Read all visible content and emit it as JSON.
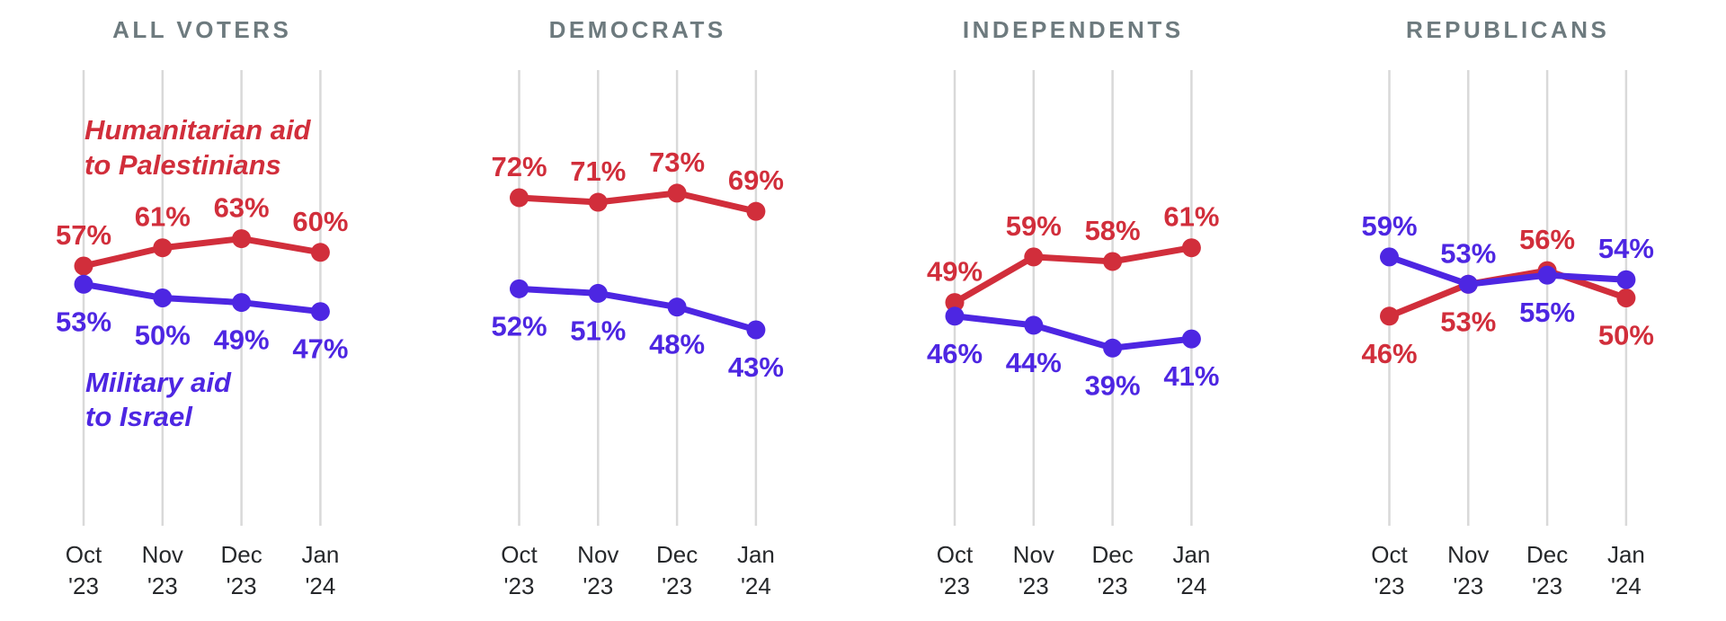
{
  "page": {
    "background": "#ffffff",
    "description": "Small-multiples poll trend chart comparing support for humanitarian aid to Palestinians vs military aid to Israel"
  },
  "colors": {
    "palestinians_red": "#d12e3b",
    "israel_blue": "#4d26e2",
    "panel_title_gray": "#6d7a7e",
    "axis_text": "#26282b",
    "gridline": "#d9d9d9"
  },
  "chart_data": {
    "type": "line",
    "grid": "vertical-gridlines-only",
    "legend_position": "inline-annotations-first-panel",
    "ylim": [
      0,
      100
    ],
    "label_format": "{v}%",
    "categories": [
      "Oct '23",
      "Nov '23",
      "Dec '23",
      "Jan '24"
    ],
    "x_tick_lines": [
      [
        "Oct",
        "'23"
      ],
      [
        "Nov",
        "'23"
      ],
      [
        "Dec",
        "'23"
      ],
      [
        "Jan",
        "'24"
      ]
    ],
    "series_meta": {
      "palestinians": {
        "name": "Humanitarian aid to Palestinians",
        "color": "#d12e3b"
      },
      "israel": {
        "name": "Military aid to Israel",
        "color": "#4d26e2"
      }
    },
    "annotations": [
      {
        "panel": 0,
        "series": "palestinians",
        "lines": [
          "Humanitarian aid",
          "to Palestinians"
        ]
      },
      {
        "panel": 0,
        "series": "israel",
        "lines": [
          "Military aid",
          "to Israel"
        ]
      }
    ],
    "panels": [
      {
        "title": "ALL VOTERS",
        "series": [
          {
            "key": "palestinians",
            "values": [
              57,
              61,
              63,
              60
            ],
            "label_side": [
              "above",
              "above",
              "above",
              "above"
            ]
          },
          {
            "key": "israel",
            "values": [
              53,
              50,
              49,
              47
            ],
            "label_side": [
              "below",
              "below",
              "below",
              "below"
            ]
          }
        ]
      },
      {
        "title": "DEMOCRATS",
        "series": [
          {
            "key": "palestinians",
            "values": [
              72,
              71,
              73,
              69
            ],
            "label_side": [
              "above",
              "above",
              "above",
              "above"
            ]
          },
          {
            "key": "israel",
            "values": [
              52,
              51,
              48,
              43
            ],
            "label_side": [
              "below",
              "below",
              "below",
              "below"
            ]
          }
        ]
      },
      {
        "title": "INDEPENDENTS",
        "series": [
          {
            "key": "palestinians",
            "values": [
              49,
              59,
              58,
              61
            ],
            "label_side": [
              "above",
              "above",
              "above",
              "above"
            ]
          },
          {
            "key": "israel",
            "values": [
              46,
              44,
              39,
              41
            ],
            "label_side": [
              "below",
              "below",
              "below",
              "below"
            ]
          }
        ]
      },
      {
        "title": "REPUBLICANS",
        "series": [
          {
            "key": "palestinians",
            "values": [
              46,
              53,
              56,
              50
            ],
            "label_side": [
              "below",
              "below",
              "above",
              "below"
            ]
          },
          {
            "key": "israel",
            "values": [
              59,
              53,
              55,
              54
            ],
            "label_side": [
              "above",
              "above",
              "below",
              "above"
            ]
          }
        ]
      }
    ]
  }
}
